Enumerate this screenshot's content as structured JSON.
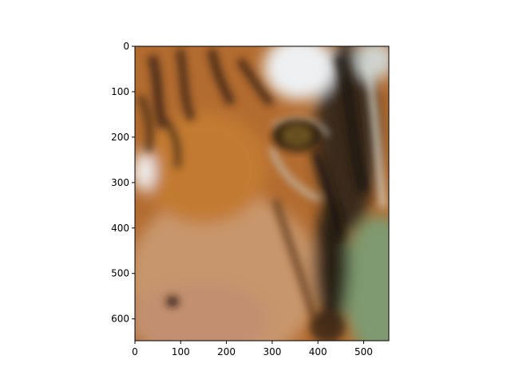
{
  "figure": {
    "image_subject": "close-up of a tiger's face and eye",
    "x_ticks": [
      "0",
      "100",
      "200",
      "300",
      "400",
      "500"
    ],
    "y_ticks": [
      "0",
      "100",
      "200",
      "300",
      "400",
      "500",
      "600"
    ],
    "axis_color": "#000000",
    "palette": {
      "fur_orange": "#b86a2a",
      "fur_dark": "#3a2412",
      "fur_tan": "#c8966a",
      "white_patch": "#eef0f2",
      "eye_amber": "#8a6a2a",
      "background_green": "#7f9a70"
    }
  },
  "chart_data": {
    "type": "image",
    "xlim": [
      0,
      555
    ],
    "ylim": [
      648,
      0
    ],
    "x_ticks": [
      0,
      100,
      200,
      300,
      400,
      500
    ],
    "y_ticks": [
      0,
      100,
      200,
      300,
      400,
      500,
      600
    ]
  }
}
